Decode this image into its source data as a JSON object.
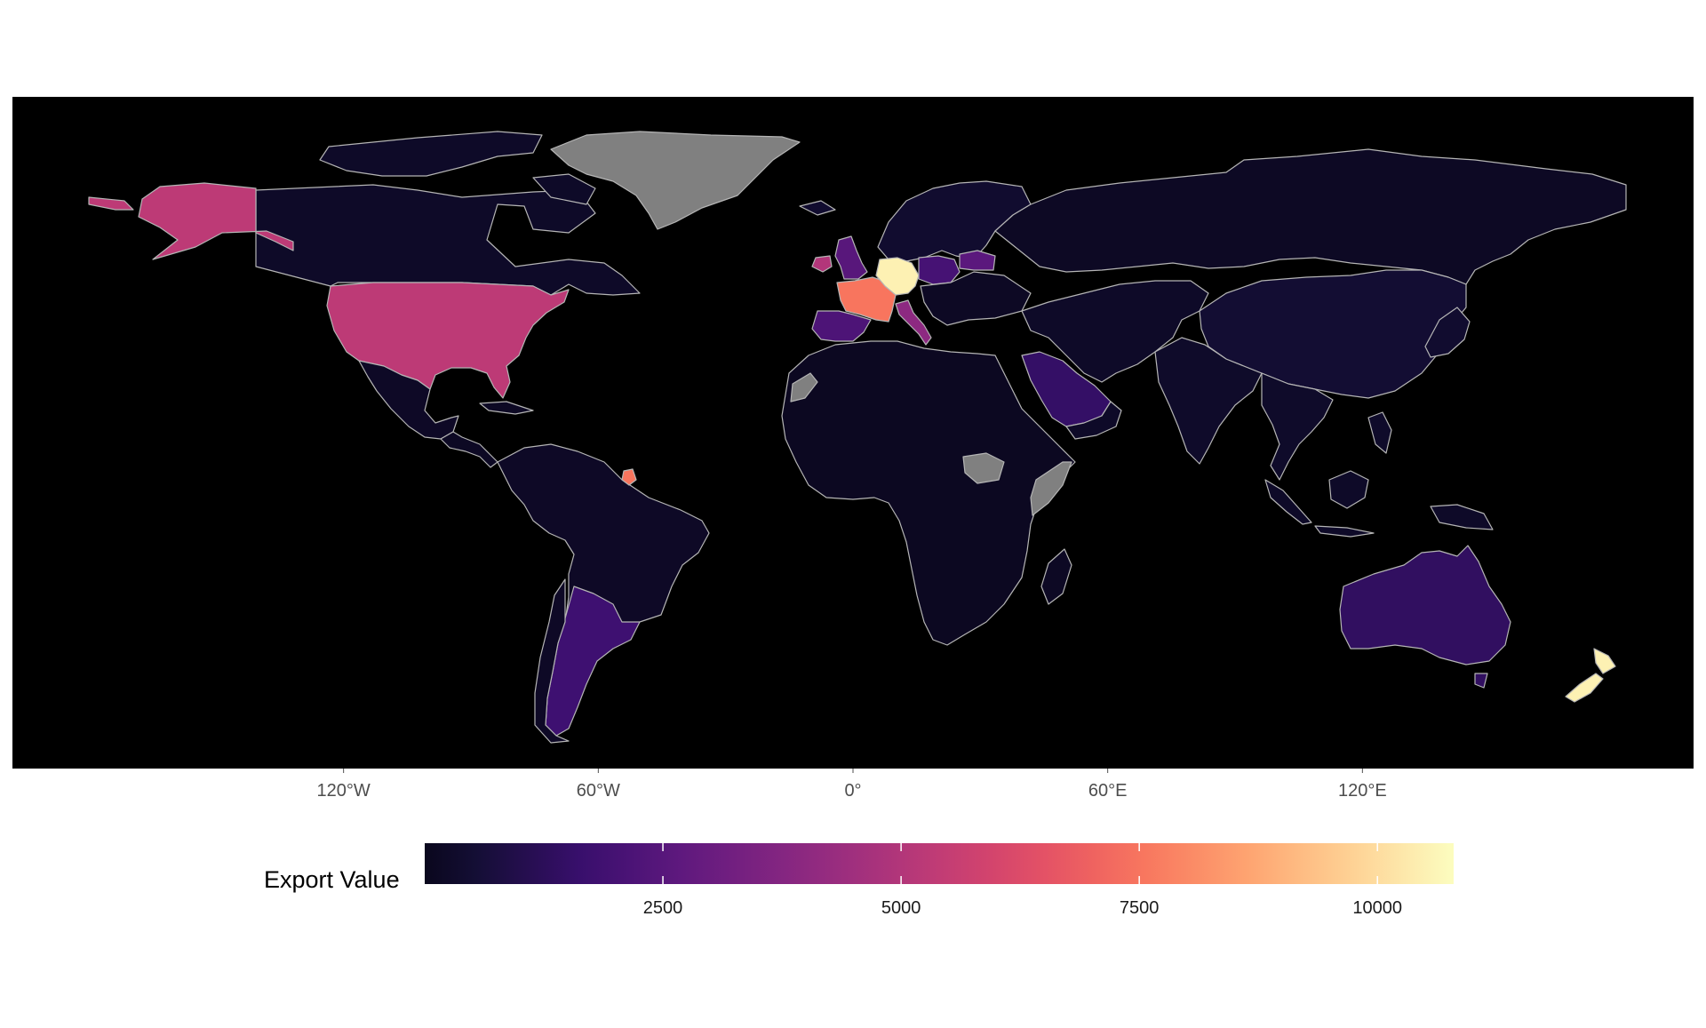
{
  "map": {
    "background_color": "#000000",
    "missing_color": "#808080",
    "border_color": "#b5b5b5",
    "lon_ticks": [
      {
        "lon": -120,
        "label": "120°W"
      },
      {
        "lon": -60,
        "label": "60°W"
      },
      {
        "lon": 0,
        "label": "0°"
      },
      {
        "lon": 60,
        "label": "60°E"
      },
      {
        "lon": 120,
        "label": "120°E"
      }
    ],
    "regions": [
      {
        "name": "Canada",
        "value": 250
      },
      {
        "name": "Alaska (United States)",
        "value": 5300
      },
      {
        "name": "United States",
        "value": 5300
      },
      {
        "name": "Greenland",
        "value": null
      },
      {
        "name": "Mexico",
        "value": 200
      },
      {
        "name": "Central America",
        "value": 150
      },
      {
        "name": "South America",
        "value": 200
      },
      {
        "name": "Argentina",
        "value": 1800
      },
      {
        "name": "French Guiana",
        "value": 7500
      },
      {
        "name": "France",
        "value": 7500
      },
      {
        "name": "Germany",
        "value": 10500
      },
      {
        "name": "United Kingdom",
        "value": 2500
      },
      {
        "name": "Ireland",
        "value": 5000
      },
      {
        "name": "Spain",
        "value": 2200
      },
      {
        "name": "Italy",
        "value": 4000
      },
      {
        "name": "Poland",
        "value": 2000
      },
      {
        "name": "Belarus",
        "value": 2600
      },
      {
        "name": "Scandinavia",
        "value": 400
      },
      {
        "name": "Russia",
        "value": 150
      },
      {
        "name": "Africa",
        "value": 100
      },
      {
        "name": "Western Sahara",
        "value": null
      },
      {
        "name": "South Sudan",
        "value": null
      },
      {
        "name": "Somalia",
        "value": null
      },
      {
        "name": "Madagascar",
        "value": 150
      },
      {
        "name": "Saudi Arabia",
        "value": 1500
      },
      {
        "name": "Middle East & Central Asia",
        "value": 250
      },
      {
        "name": "India",
        "value": 300
      },
      {
        "name": "China",
        "value": 500
      },
      {
        "name": "Southeast Asia",
        "value": 300
      },
      {
        "name": "Indonesia",
        "value": 250
      },
      {
        "name": "Papua New Guinea",
        "value": 250
      },
      {
        "name": "Australia",
        "value": 1400
      },
      {
        "name": "New Zealand",
        "value": 10500
      },
      {
        "name": "Japan",
        "value": 400
      }
    ]
  },
  "legend": {
    "title": "Export Value",
    "min": 0,
    "max": 10800,
    "ticks": [
      {
        "value": 2500,
        "label": "2500"
      },
      {
        "value": 5000,
        "label": "5000"
      },
      {
        "value": 7500,
        "label": "7500"
      },
      {
        "value": 10000,
        "label": "10000"
      }
    ],
    "colormap": "magma"
  }
}
